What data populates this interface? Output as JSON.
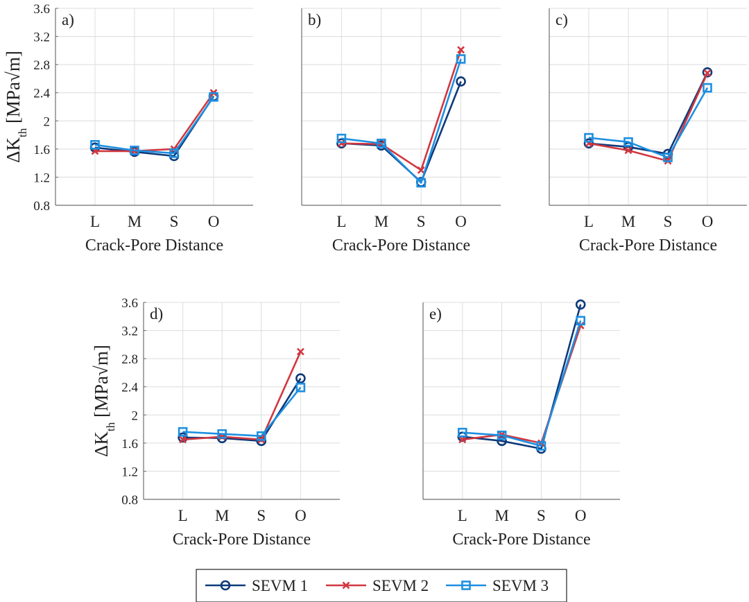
{
  "colors": {
    "series": [
      "#0d3a7a",
      "#d1373f",
      "#1d8fe0"
    ],
    "grid": "#dcdcdc",
    "axis": "#6e6e6e"
  },
  "chart_data": [
    {
      "type": "line",
      "panel_label": "a)",
      "categories": [
        "L",
        "M",
        "S",
        "O"
      ],
      "xlabel": "Crack-Pore Distance",
      "ylabel": "ΔK_th [MPa√m]",
      "ylim": [
        0.8,
        3.6
      ],
      "yticks": [
        "0.8",
        "1.2",
        "1.6",
        "2",
        "2.4",
        "2.8",
        "3.2",
        "3.6"
      ],
      "grid": true,
      "series": [
        {
          "name": "SEVM 1",
          "marker": "circle",
          "values": [
            1.62,
            1.56,
            1.5,
            2.35
          ]
        },
        {
          "name": "SEVM 2",
          "marker": "x",
          "values": [
            1.57,
            1.57,
            1.6,
            2.4
          ]
        },
        {
          "name": "SEVM 3",
          "marker": "square",
          "values": [
            1.66,
            1.58,
            1.54,
            2.34
          ]
        }
      ]
    },
    {
      "type": "line",
      "panel_label": "b)",
      "categories": [
        "L",
        "M",
        "S",
        "O"
      ],
      "xlabel": "Crack-Pore Distance",
      "ylim": [
        0.8,
        3.6
      ],
      "grid": true,
      "series": [
        {
          "name": "SEVM 1",
          "marker": "circle",
          "values": [
            1.68,
            1.65,
            1.13,
            2.56
          ]
        },
        {
          "name": "SEVM 2",
          "marker": "x",
          "values": [
            1.68,
            1.67,
            1.3,
            3.01
          ]
        },
        {
          "name": "SEVM 3",
          "marker": "square",
          "values": [
            1.75,
            1.68,
            1.12,
            2.88
          ]
        }
      ]
    },
    {
      "type": "line",
      "panel_label": "c)",
      "categories": [
        "L",
        "M",
        "S",
        "O"
      ],
      "xlabel": "Crack-Pore Distance",
      "ylim": [
        0.8,
        3.6
      ],
      "grid": true,
      "series": [
        {
          "name": "SEVM 1",
          "marker": "circle",
          "values": [
            1.68,
            1.63,
            1.53,
            2.69
          ]
        },
        {
          "name": "SEVM 2",
          "marker": "x",
          "values": [
            1.68,
            1.58,
            1.43,
            2.68
          ]
        },
        {
          "name": "SEVM 3",
          "marker": "square",
          "values": [
            1.76,
            1.7,
            1.48,
            2.47
          ]
        }
      ]
    },
    {
      "type": "line",
      "panel_label": "d)",
      "categories": [
        "L",
        "M",
        "S",
        "O"
      ],
      "xlabel": "Crack-Pore Distance",
      "ylabel": "ΔK_th [MPa√m]",
      "ylim": [
        0.8,
        3.6
      ],
      "yticks": [
        "0.8",
        "1.2",
        "1.6",
        "2",
        "2.4",
        "2.8",
        "3.2",
        "3.6"
      ],
      "grid": true,
      "series": [
        {
          "name": "SEVM 1",
          "marker": "circle",
          "values": [
            1.68,
            1.67,
            1.63,
            2.52
          ]
        },
        {
          "name": "SEVM 2",
          "marker": "x",
          "values": [
            1.65,
            1.69,
            1.65,
            2.9
          ]
        },
        {
          "name": "SEVM 3",
          "marker": "square",
          "values": [
            1.76,
            1.73,
            1.7,
            2.39
          ]
        }
      ]
    },
    {
      "type": "line",
      "panel_label": "e)",
      "categories": [
        "L",
        "M",
        "S",
        "O"
      ],
      "xlabel": "Crack-Pore Distance",
      "ylim": [
        0.8,
        3.6
      ],
      "grid": true,
      "series": [
        {
          "name": "SEVM 1",
          "marker": "circle",
          "values": [
            1.69,
            1.63,
            1.52,
            3.57
          ]
        },
        {
          "name": "SEVM 2",
          "marker": "x",
          "values": [
            1.65,
            1.72,
            1.6,
            3.27
          ]
        },
        {
          "name": "SEVM 3",
          "marker": "square",
          "values": [
            1.75,
            1.71,
            1.56,
            3.34
          ]
        }
      ]
    }
  ],
  "legend": {
    "entries": [
      "SEVM 1",
      "SEVM 2",
      "SEVM 3"
    ],
    "position": "bottom-center"
  }
}
